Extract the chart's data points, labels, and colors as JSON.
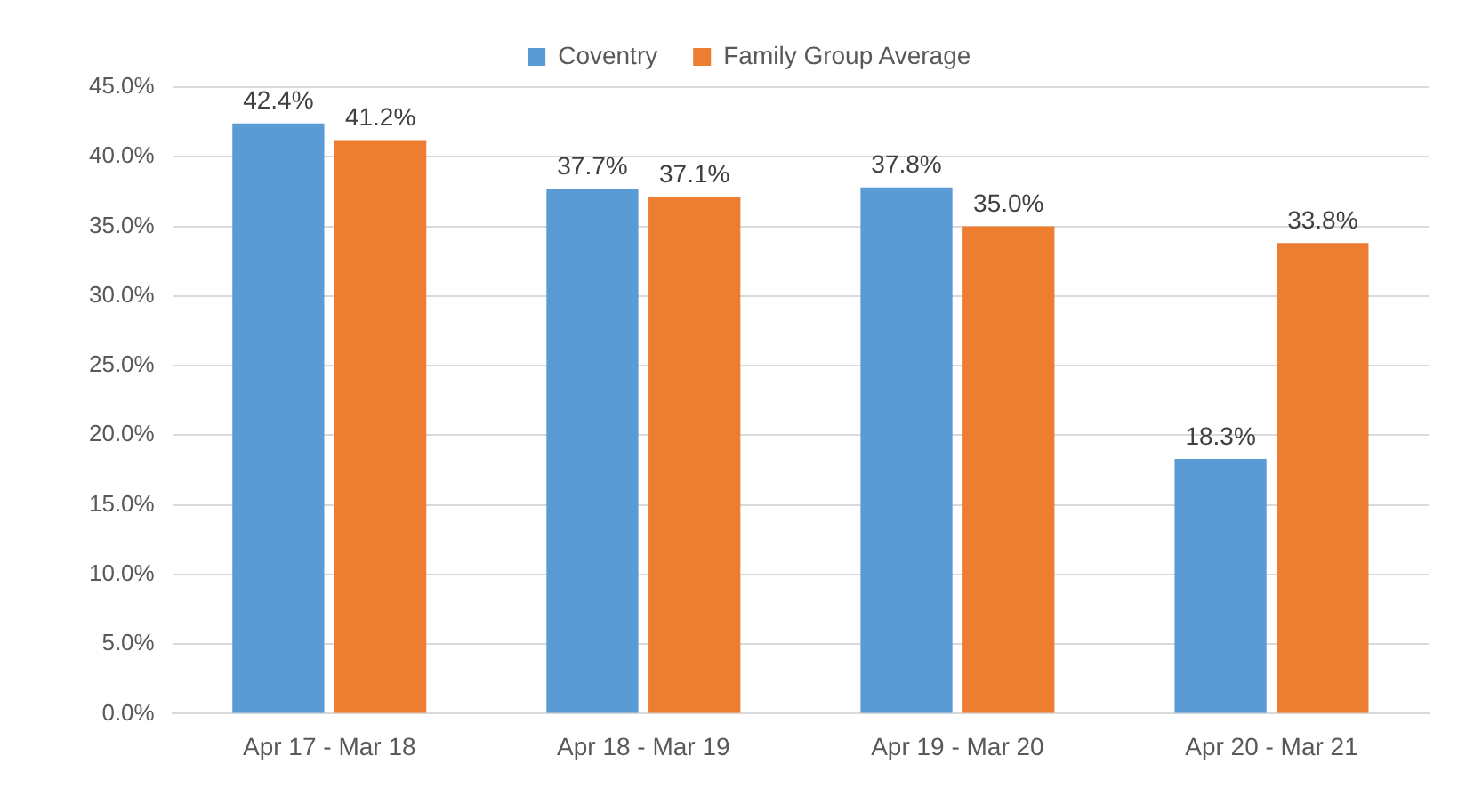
{
  "chart_data": {
    "type": "bar",
    "categories": [
      "Apr 17 - Mar 18",
      "Apr 18 - Mar 19",
      "Apr 19 - Mar 20",
      "Apr 20 - Mar 21"
    ],
    "series": [
      {
        "name": "Coventry",
        "color": "#5b9bd5",
        "values": [
          42.4,
          37.7,
          37.8,
          18.3
        ],
        "value_labels": [
          "42.4%",
          "37.7%",
          "37.8%",
          "18.3%"
        ]
      },
      {
        "name": "Family Group Average",
        "color": "#ed7d31",
        "values": [
          41.2,
          37.1,
          35.0,
          33.8
        ],
        "value_labels": [
          "41.2%",
          "37.1%",
          "35.0%",
          "33.8%"
        ]
      }
    ],
    "ylim": [
      0,
      45
    ],
    "yticks": [
      {
        "value": 0,
        "label": "0.0%"
      },
      {
        "value": 5,
        "label": "5.0%"
      },
      {
        "value": 10,
        "label": "10.0%"
      },
      {
        "value": 15,
        "label": "15.0%"
      },
      {
        "value": 20,
        "label": "20.0%"
      },
      {
        "value": 25,
        "label": "25.0%"
      },
      {
        "value": 30,
        "label": "30.0%"
      },
      {
        "value": 35,
        "label": "35.0%"
      },
      {
        "value": 40,
        "label": "40.0%"
      },
      {
        "value": 45,
        "label": "45.0%"
      }
    ],
    "grid": "y",
    "legend": "top"
  }
}
